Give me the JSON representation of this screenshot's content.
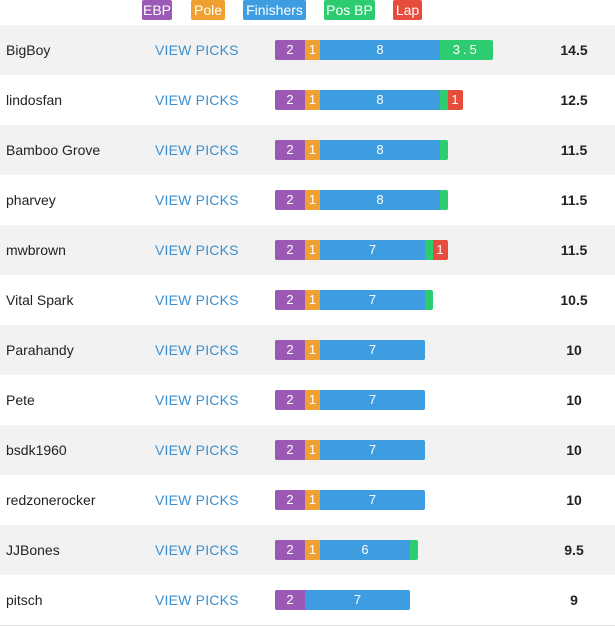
{
  "colors": {
    "ebp": "#9b59b6",
    "pole": "#f0a030",
    "finishers": "#3d9de0",
    "posbp": "#2ecc71",
    "lap": "#e74c3c"
  },
  "legend": [
    {
      "key": "ebp",
      "label": "EBP"
    },
    {
      "key": "pole",
      "label": "Pole"
    },
    {
      "key": "finishers",
      "label": "Finishers"
    },
    {
      "key": "posbp",
      "label": "Pos BP"
    },
    {
      "key": "lap",
      "label": "Lap"
    }
  ],
  "view_label": "VIEW PICKS",
  "rows": [
    {
      "name": "BigBoy",
      "total": "14.5",
      "segments": [
        {
          "key": "ebp",
          "value": 2,
          "label": "2"
        },
        {
          "key": "pole",
          "value": 1,
          "label": "1"
        },
        {
          "key": "finishers",
          "value": 8,
          "label": "8"
        },
        {
          "key": "posbp",
          "value": 3.5,
          "label": "3.5"
        }
      ]
    },
    {
      "name": "lindosfan",
      "total": "12.5",
      "segments": [
        {
          "key": "ebp",
          "value": 2,
          "label": "2"
        },
        {
          "key": "pole",
          "value": 1,
          "label": "1"
        },
        {
          "key": "finishers",
          "value": 8,
          "label": "8"
        },
        {
          "key": "posbp",
          "value": 0.5,
          "label": ""
        },
        {
          "key": "lap",
          "value": 1,
          "label": "1"
        }
      ]
    },
    {
      "name": "Bamboo Grove",
      "total": "11.5",
      "segments": [
        {
          "key": "ebp",
          "value": 2,
          "label": "2"
        },
        {
          "key": "pole",
          "value": 1,
          "label": "1"
        },
        {
          "key": "finishers",
          "value": 8,
          "label": "8"
        },
        {
          "key": "posbp",
          "value": 0.5,
          "label": ""
        }
      ]
    },
    {
      "name": "pharvey",
      "total": "11.5",
      "segments": [
        {
          "key": "ebp",
          "value": 2,
          "label": "2"
        },
        {
          "key": "pole",
          "value": 1,
          "label": "1"
        },
        {
          "key": "finishers",
          "value": 8,
          "label": "8"
        },
        {
          "key": "posbp",
          "value": 0.5,
          "label": ""
        }
      ]
    },
    {
      "name": "mwbrown",
      "total": "11.5",
      "segments": [
        {
          "key": "ebp",
          "value": 2,
          "label": "2"
        },
        {
          "key": "pole",
          "value": 1,
          "label": "1"
        },
        {
          "key": "finishers",
          "value": 7,
          "label": "7"
        },
        {
          "key": "posbp",
          "value": 0.5,
          "label": ""
        },
        {
          "key": "lap",
          "value": 1,
          "label": "1"
        }
      ]
    },
    {
      "name": "Vital Spark",
      "total": "10.5",
      "segments": [
        {
          "key": "ebp",
          "value": 2,
          "label": "2"
        },
        {
          "key": "pole",
          "value": 1,
          "label": "1"
        },
        {
          "key": "finishers",
          "value": 7,
          "label": "7"
        },
        {
          "key": "posbp",
          "value": 0.5,
          "label": ""
        }
      ]
    },
    {
      "name": "Parahandy",
      "total": "10",
      "segments": [
        {
          "key": "ebp",
          "value": 2,
          "label": "2"
        },
        {
          "key": "pole",
          "value": 1,
          "label": "1"
        },
        {
          "key": "finishers",
          "value": 7,
          "label": "7"
        }
      ]
    },
    {
      "name": "Pete",
      "total": "10",
      "segments": [
        {
          "key": "ebp",
          "value": 2,
          "label": "2"
        },
        {
          "key": "pole",
          "value": 1,
          "label": "1"
        },
        {
          "key": "finishers",
          "value": 7,
          "label": "7"
        }
      ]
    },
    {
      "name": "bsdk1960",
      "total": "10",
      "segments": [
        {
          "key": "ebp",
          "value": 2,
          "label": "2"
        },
        {
          "key": "pole",
          "value": 1,
          "label": "1"
        },
        {
          "key": "finishers",
          "value": 7,
          "label": "7"
        }
      ]
    },
    {
      "name": "redzonerocker",
      "total": "10",
      "segments": [
        {
          "key": "ebp",
          "value": 2,
          "label": "2"
        },
        {
          "key": "pole",
          "value": 1,
          "label": "1"
        },
        {
          "key": "finishers",
          "value": 7,
          "label": "7"
        }
      ]
    },
    {
      "name": "JJBones",
      "total": "9.5",
      "segments": [
        {
          "key": "ebp",
          "value": 2,
          "label": "2"
        },
        {
          "key": "pole",
          "value": 1,
          "label": "1"
        },
        {
          "key": "finishers",
          "value": 6,
          "label": "6"
        },
        {
          "key": "posbp",
          "value": 0.5,
          "label": ""
        }
      ]
    },
    {
      "name": "pitsch",
      "total": "9",
      "segments": [
        {
          "key": "ebp",
          "value": 2,
          "label": "2"
        },
        {
          "key": "finishers",
          "value": 7,
          "label": "7"
        }
      ]
    }
  ]
}
